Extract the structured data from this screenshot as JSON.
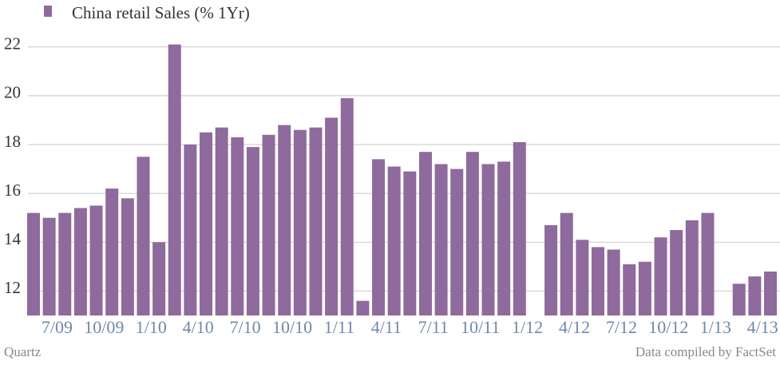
{
  "chart_data": {
    "type": "bar",
    "series": [
      {
        "name": "China retail Sales (% 1Yr)",
        "color": "#8e6a9d",
        "values": [
          15.2,
          15.0,
          15.2,
          15.4,
          15.5,
          16.2,
          15.8,
          17.5,
          14.0,
          22.1,
          18.0,
          18.5,
          18.7,
          18.3,
          17.9,
          18.4,
          18.8,
          18.6,
          18.7,
          19.1,
          19.9,
          11.6,
          17.4,
          17.1,
          16.9,
          17.7,
          17.2,
          17.0,
          17.7,
          17.2,
          17.3,
          18.1,
          null,
          14.7,
          15.2,
          14.1,
          13.8,
          13.7,
          13.1,
          13.2,
          14.2,
          14.5,
          14.9,
          15.2,
          null,
          12.3,
          12.6,
          12.8
        ]
      }
    ],
    "categories": [
      null,
      null,
      "7/09",
      null,
      null,
      "10/09",
      null,
      null,
      "1/10",
      null,
      null,
      "4/10",
      null,
      null,
      "7/10",
      null,
      null,
      "10/10",
      null,
      null,
      "1/11",
      null,
      null,
      "4/11",
      null,
      null,
      "7/11",
      null,
      null,
      "10/11",
      null,
      null,
      "1/12",
      null,
      null,
      "4/12",
      null,
      null,
      "7/12",
      null,
      null,
      "10/12",
      null,
      null,
      "1/13",
      null,
      null,
      "4/13"
    ],
    "ylim": [
      11,
      23.3
    ],
    "yticks": [
      12,
      14,
      16,
      18,
      20,
      22
    ],
    "grid": true,
    "source_left": "Quartz",
    "source_right": "Data compiled by FactSet"
  }
}
